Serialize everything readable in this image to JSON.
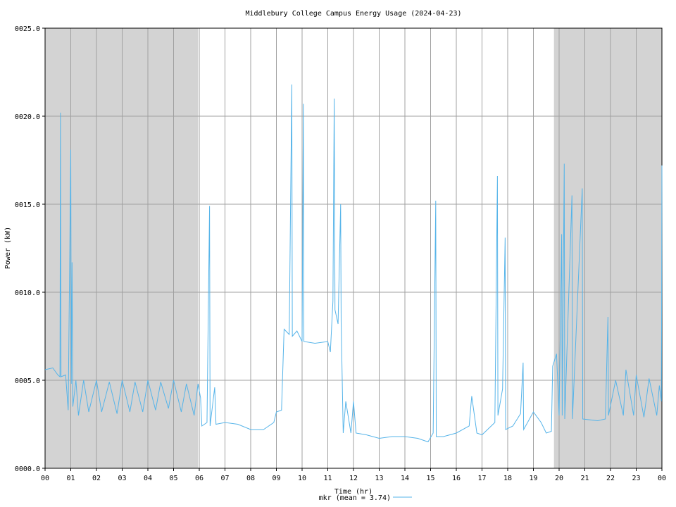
{
  "chart_data": {
    "type": "line",
    "title": "Middlebury College Campus Energy Usage (2024-04-23)",
    "xlabel": "Time (hr)",
    "ylabel": "Power (kW)",
    "xlim": [
      0,
      24
    ],
    "ylim": [
      0,
      25
    ],
    "grid": true,
    "shaded_color": "#d3d3d3",
    "shaded_regions": [
      [
        0,
        5.95
      ],
      [
        19.8,
        24
      ]
    ],
    "xticks": [
      {
        "value": 0,
        "label": "00"
      },
      {
        "value": 1,
        "label": "01"
      },
      {
        "value": 2,
        "label": "02"
      },
      {
        "value": 3,
        "label": "03"
      },
      {
        "value": 4,
        "label": "04"
      },
      {
        "value": 5,
        "label": "05"
      },
      {
        "value": 6,
        "label": "06"
      },
      {
        "value": 7,
        "label": "07"
      },
      {
        "value": 8,
        "label": "08"
      },
      {
        "value": 9,
        "label": "09"
      },
      {
        "value": 10,
        "label": "10"
      },
      {
        "value": 11,
        "label": "11"
      },
      {
        "value": 12,
        "label": "12"
      },
      {
        "value": 13,
        "label": "13"
      },
      {
        "value": 14,
        "label": "14"
      },
      {
        "value": 15,
        "label": "15"
      },
      {
        "value": 16,
        "label": "16"
      },
      {
        "value": 17,
        "label": "17"
      },
      {
        "value": 18,
        "label": "18"
      },
      {
        "value": 19,
        "label": "19"
      },
      {
        "value": 20,
        "label": "20"
      },
      {
        "value": 21,
        "label": "21"
      },
      {
        "value": 22,
        "label": "22"
      },
      {
        "value": 23,
        "label": "23"
      },
      {
        "value": 24,
        "label": "00"
      }
    ],
    "yticks": [
      {
        "value": 0,
        "label": "0000.0"
      },
      {
        "value": 5,
        "label": "0005.0"
      },
      {
        "value": 10,
        "label": "0010.0"
      },
      {
        "value": 15,
        "label": "0015.0"
      },
      {
        "value": 20,
        "label": "0020.0"
      },
      {
        "value": 25,
        "label": "0025.0"
      }
    ],
    "legend": "bottom",
    "x": [
      0,
      0.3,
      0.5,
      0.58,
      0.6,
      0.62,
      0.8,
      0.9,
      1.0,
      1.02,
      1.05,
      1.08,
      1.2,
      1.3,
      1.5,
      1.7,
      2.0,
      2.2,
      2.5,
      2.8,
      3.0,
      3.3,
      3.5,
      3.8,
      4.0,
      4.3,
      4.5,
      4.8,
      5.0,
      5.3,
      5.5,
      5.8,
      5.95,
      6.05,
      6.1,
      6.3,
      6.4,
      6.42,
      6.6,
      6.65,
      7.0,
      7.5,
      8.0,
      8.5,
      8.9,
      9.0,
      9.2,
      9.3,
      9.5,
      9.6,
      9.62,
      9.8,
      10.0,
      10.05,
      10.07,
      10.5,
      11.0,
      11.1,
      11.2,
      11.25,
      11.28,
      11.4,
      11.5,
      11.52,
      11.6,
      11.7,
      11.9,
      12.0,
      12.1,
      12.5,
      13.0,
      13.5,
      14.0,
      14.5,
      14.9,
      15.1,
      15.2,
      15.22,
      15.5,
      16.0,
      16.5,
      16.6,
      16.8,
      17.0,
      17.5,
      17.6,
      17.62,
      17.8,
      17.9,
      17.92,
      18.2,
      18.5,
      18.6,
      18.62,
      19.0,
      19.3,
      19.5,
      19.7,
      19.75,
      19.9,
      20.0,
      20.1,
      20.12,
      20.2,
      20.22,
      20.5,
      20.52,
      20.9,
      20.92,
      21.5,
      21.8,
      21.9,
      21.92,
      22.2,
      22.5,
      22.6,
      22.9,
      23.0,
      23.3,
      23.5,
      23.8,
      23.9,
      23.98,
      24.0
    ],
    "series": [
      {
        "name": "mkr (mean = 3.74)",
        "color": "#56b4e9",
        "values": [
          5.6,
          5.7,
          5.3,
          5.2,
          20.2,
          5.2,
          5.3,
          3.3,
          18.1,
          4.8,
          11.7,
          3.5,
          5.0,
          3.0,
          5.0,
          3.2,
          5.0,
          3.2,
          4.9,
          3.1,
          5.0,
          3.2,
          4.9,
          3.2,
          5.0,
          3.3,
          4.9,
          3.4,
          5.0,
          3.2,
          4.8,
          3.0,
          4.8,
          4.0,
          2.4,
          2.6,
          14.9,
          2.4,
          4.6,
          2.5,
          2.6,
          2.5,
          2.2,
          2.2,
          2.6,
          3.2,
          3.3,
          7.9,
          7.6,
          21.8,
          7.5,
          7.8,
          7.2,
          20.7,
          7.2,
          7.1,
          7.2,
          6.6,
          9.5,
          21.0,
          9.0,
          8.2,
          15.0,
          8.3,
          2.0,
          3.8,
          2.0,
          3.8,
          2.0,
          1.9,
          1.7,
          1.8,
          1.8,
          1.7,
          1.5,
          2.0,
          15.2,
          1.8,
          1.8,
          2.0,
          2.4,
          4.1,
          2.0,
          1.9,
          2.6,
          16.6,
          3.0,
          4.5,
          13.1,
          2.2,
          2.4,
          3.1,
          6.0,
          2.2,
          3.2,
          2.6,
          2.0,
          2.1,
          5.8,
          6.5,
          3.0,
          13.3,
          3.0,
          17.3,
          2.8,
          15.5,
          2.8,
          15.9,
          2.8,
          2.7,
          2.8,
          8.6,
          3.0,
          5.0,
          3.0,
          5.6,
          3.0,
          5.3,
          2.9,
          5.1,
          3.0,
          4.7,
          3.8,
          17.2
        ]
      }
    ]
  }
}
